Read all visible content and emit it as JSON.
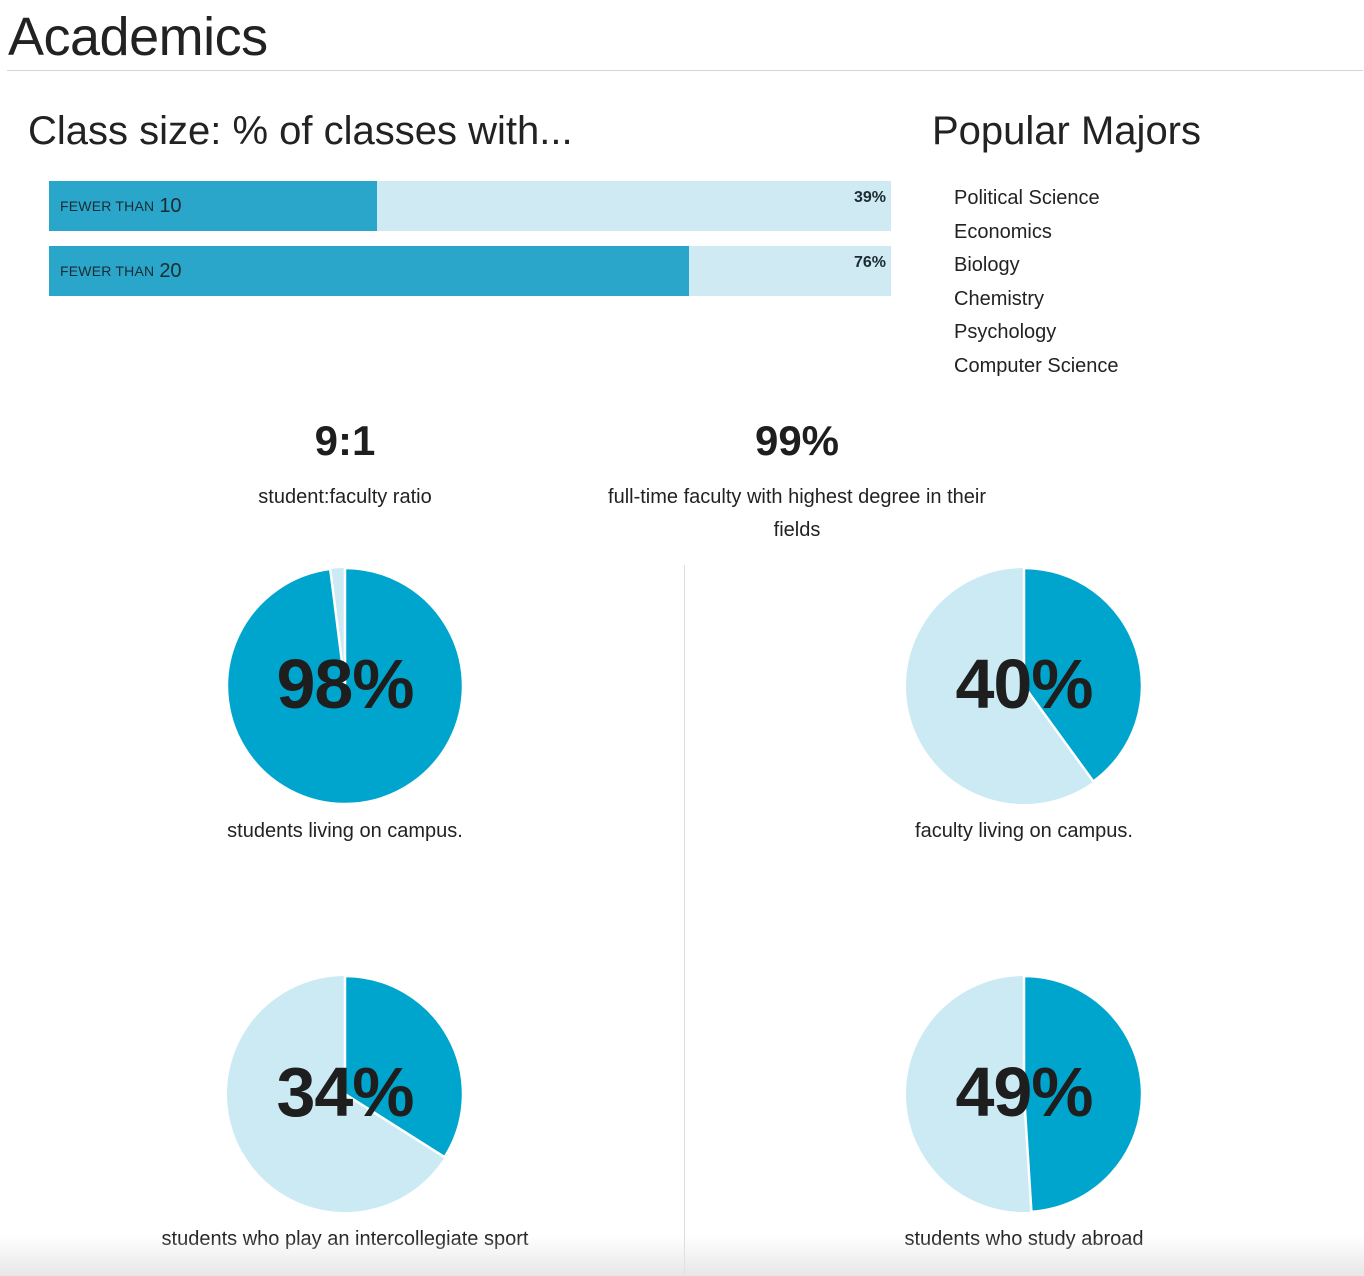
{
  "page": {
    "title": "Academics"
  },
  "class_size": {
    "heading": "Class size: % of classes with...",
    "bars": [
      {
        "prefix": "FEWER THAN",
        "number": "10",
        "value_label": "39%",
        "fraction": 0.39
      },
      {
        "prefix": "FEWER THAN",
        "number": "20",
        "value_label": "76%",
        "fraction": 0.76
      }
    ]
  },
  "popular_majors": {
    "heading": "Popular Majors",
    "items": [
      "Political Science",
      "Economics",
      "Biology",
      "Chemistry",
      "Psychology",
      "Computer Science"
    ]
  },
  "stats": {
    "ratio": {
      "value": "9:1",
      "label": "student:faculty ratio"
    },
    "faculty_degree": {
      "value": "99%",
      "label": "full-time faculty with highest degree in their fields"
    }
  },
  "pies": [
    {
      "value": 98,
      "label": "98%",
      "caption": "students living on campus."
    },
    {
      "value": 40,
      "label": "40%",
      "caption": "faculty living on campus."
    },
    {
      "value": 34,
      "label": "34%",
      "caption": "students who play an intercollegiate sport"
    },
    {
      "value": 49,
      "label": "49%",
      "caption": "students who study abroad"
    }
  ],
  "colors": {
    "accent": "#00a5ce",
    "accent_light": "#cbeaf4",
    "bar_fill": "#2aa6cb",
    "bar_track": "#cfeaf2"
  }
}
